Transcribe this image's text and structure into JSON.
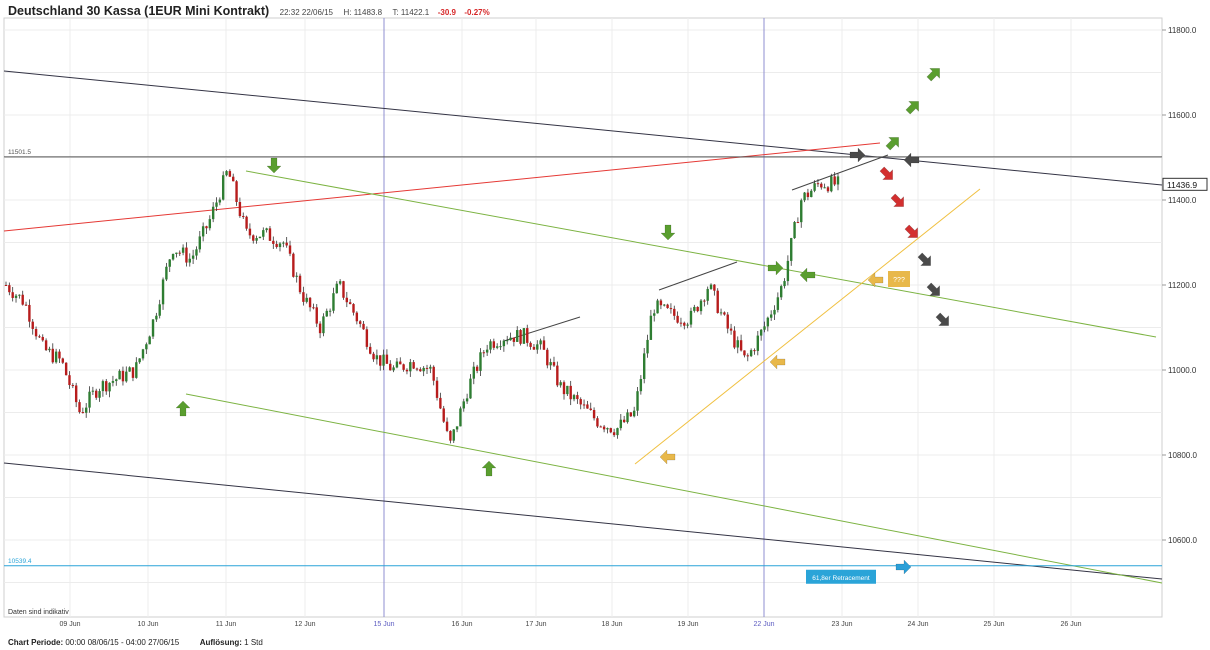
{
  "header": {
    "title": "Deutschland 30 Kassa (1EUR Mini Kontrakt)",
    "time": "22:32 22/06/15",
    "high": "H: 11483.8",
    "low": "T: 11422.1",
    "change": "-30.9",
    "change_pct": "-0.27%"
  },
  "footer": {
    "period_label": "Chart Periode:",
    "period_value": "00:00 08/06/15 - 04:00 27/06/15",
    "resolution_label": "Auflösung:",
    "resolution_value": "1 Std"
  },
  "chart_data": {
    "type": "candlestick",
    "title": "Deutschland 30 Kassa (1EUR Mini Kontrakt)",
    "x_ticks": [
      "09 Jun",
      "10 Jun",
      "11 Jun",
      "12 Jun",
      "15 Jun",
      "16 Jun",
      "17 Jun",
      "18 Jun",
      "19 Jun",
      "22 Jun",
      "23 Jun",
      "24 Jun",
      "25 Jun",
      "26 Jun"
    ],
    "y_ticks": [
      "11800.0",
      "11600.0",
      "11400.0",
      "11200.0",
      "11000.0",
      "10800.0",
      "10600.0"
    ],
    "ylim": [
      10460,
      11840
    ],
    "grid": true,
    "current_price": "11436.9",
    "reference_levels": [
      {
        "label": "11501.5",
        "value": 11501.5,
        "color": "#555555"
      },
      {
        "label": "10539.4",
        "value": 10539.4,
        "color": "#2aa4d8"
      }
    ],
    "annotations": {
      "disclaimer": "Daten sind indikativ",
      "fib_box": "61,8er Retracement",
      "question_box": "???"
    },
    "close_path": [
      [
        "09 Jun",
        11200
      ],
      [
        "09 Jun",
        11160
      ],
      [
        "09 Jun",
        11050
      ],
      [
        "09 Jun",
        11020
      ],
      [
        "10 Jun",
        10900
      ],
      [
        "10 Jun",
        10960
      ],
      [
        "10 Jun",
        10980
      ],
      [
        "10 Jun",
        11000
      ],
      [
        "11 Jun",
        11120
      ],
      [
        "11 Jun",
        11290
      ],
      [
        "11 Jun",
        11260
      ],
      [
        "11 Jun",
        11350
      ],
      [
        "11 Jun",
        11470
      ],
      [
        "12 Jun",
        11320
      ],
      [
        "12 Jun",
        11320
      ],
      [
        "12 Jun",
        11300
      ],
      [
        "12 Jun",
        11180
      ],
      [
        "12 Jun",
        11100
      ],
      [
        "12 Jun",
        11200
      ],
      [
        "15 Jun",
        11120
      ],
      [
        "15 Jun",
        11030
      ],
      [
        "15 Jun",
        11000
      ],
      [
        "15 Jun",
        11020
      ],
      [
        "16 Jun",
        11000
      ],
      [
        "16 Jun",
        10820
      ],
      [
        "16 Jun",
        10960
      ],
      [
        "16 Jun",
        11060
      ],
      [
        "17 Jun",
        11080
      ],
      [
        "17 Jun",
        11080
      ],
      [
        "17 Jun",
        11050
      ],
      [
        "17 Jun",
        10960
      ],
      [
        "18 Jun",
        10920
      ],
      [
        "18 Jun",
        10880
      ],
      [
        "18 Jun",
        10860
      ],
      [
        "18 Jun",
        10900
      ],
      [
        "19 Jun",
        11150
      ],
      [
        "19 Jun",
        11130
      ],
      [
        "19 Jun",
        11120
      ],
      [
        "19 Jun",
        11200
      ],
      [
        "19 Jun",
        11100
      ],
      [
        "22 Jun",
        11020
      ],
      [
        "22 Jun",
        11100
      ],
      [
        "22 Jun",
        11200
      ],
      [
        "22 Jun",
        11400
      ],
      [
        "22 Jun",
        11440
      ],
      [
        "22 Jun",
        11436.9
      ]
    ]
  },
  "colors": {
    "up": "#2e7d32",
    "down": "#b71c1c",
    "green_trend": "#7cb342",
    "red_trend": "#e53935",
    "black_trend": "#333344",
    "orange_trend": "#f0c040",
    "fib": "#2aa4d8",
    "arrow_green": "#5a9e2f",
    "arrow_red": "#d32f2f",
    "arrow_grey": "#4a4a4a",
    "arrow_orange": "#e8b84a",
    "arrow_blue": "#2a9fd8"
  }
}
